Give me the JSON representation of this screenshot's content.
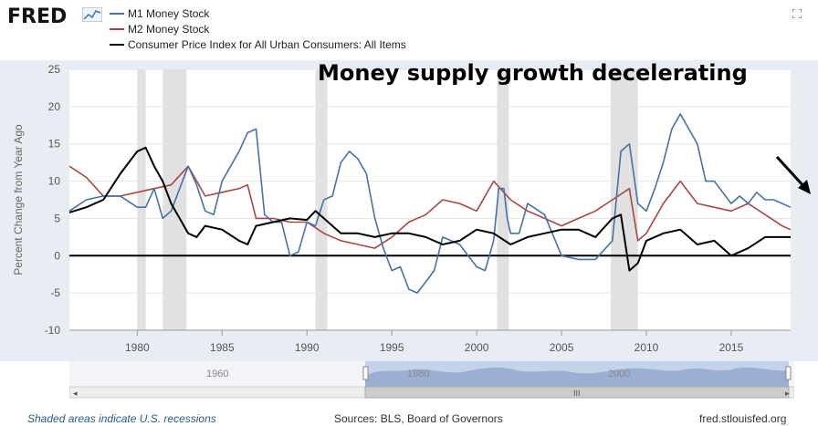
{
  "header": {
    "logo_text": "FRED",
    "legend": [
      {
        "label": "M1 Money Stock",
        "color": "#4572a7"
      },
      {
        "label": "M2 Money Stock",
        "color": "#aa4643"
      },
      {
        "label": "Consumer Price Index for All Urban Consumers: All Items",
        "color": "#000000"
      }
    ]
  },
  "annotation": {
    "text": "Money supply growth decelerating"
  },
  "chart_data": {
    "type": "line",
    "ylabel": "Percent Change from Year Ago",
    "ylim": [
      -10,
      25
    ],
    "xlim": [
      1976.0,
      2018.5
    ],
    "yticks": [
      "25",
      "20",
      "15",
      "10",
      "5",
      "0",
      "-5",
      "-10"
    ],
    "xticks": [
      "1980",
      "1985",
      "1990",
      "1995",
      "2000",
      "2005",
      "2010",
      "2015"
    ],
    "recessions": [
      [
        1980.0,
        1980.5
      ],
      [
        1981.5,
        1982.9
      ],
      [
        1990.5,
        1991.2
      ],
      [
        2001.2,
        2001.9
      ],
      [
        2007.9,
        2009.5
      ]
    ],
    "series": [
      {
        "name": "M1 Money Stock",
        "color": "#4572a7",
        "x": [
          1976.0,
          1977.0,
          1978.0,
          1979.0,
          1980.0,
          1980.5,
          1981.0,
          1981.5,
          1982.0,
          1982.5,
          1983.0,
          1983.5,
          1984.0,
          1984.5,
          1985.0,
          1985.5,
          1986.0,
          1986.5,
          1987.0,
          1987.5,
          1988.0,
          1988.5,
          1989.0,
          1989.5,
          1990.0,
          1990.5,
          1991.0,
          1991.5,
          1992.0,
          1992.5,
          1993.0,
          1993.5,
          1994.0,
          1994.5,
          1995.0,
          1995.5,
          1996.0,
          1996.5,
          1997.0,
          1997.5,
          1998.0,
          1999.0,
          2000.0,
          2000.5,
          2001.0,
          2001.3,
          2001.6,
          2001.8,
          2002.0,
          2002.5,
          2003.0,
          2004.0,
          2005.0,
          2006.0,
          2007.0,
          2008.0,
          2008.5,
          2009.0,
          2009.5,
          2010.0,
          2010.5,
          2011.0,
          2011.5,
          2012.0,
          2012.5,
          2013.0,
          2013.5,
          2014.0,
          2014.5,
          2015.0,
          2015.5,
          2016.0,
          2016.5,
          2017.0,
          2017.5,
          2018.0,
          2018.5
        ],
        "values": [
          6.0,
          7.5,
          8.0,
          8.0,
          6.5,
          6.5,
          9.0,
          5.0,
          6.0,
          9.0,
          12.0,
          9.5,
          6.0,
          5.5,
          10.0,
          12.0,
          14.0,
          16.5,
          17.0,
          5.5,
          4.5,
          4.5,
          0.0,
          0.5,
          4.5,
          4.0,
          7.5,
          8.0,
          12.5,
          14.0,
          13.0,
          11.0,
          5.0,
          1.0,
          -2.0,
          -1.5,
          -4.5,
          -5.0,
          -3.5,
          -2.0,
          2.5,
          1.5,
          -1.5,
          -2.0,
          2.0,
          9.0,
          9.0,
          5.0,
          3.0,
          3.0,
          7.0,
          5.5,
          0.0,
          -0.5,
          -0.5,
          2.0,
          14.0,
          15.0,
          7.0,
          6.0,
          9.0,
          12.5,
          17.0,
          19.0,
          17.0,
          15.0,
          10.0,
          10.0,
          8.5,
          7.0,
          8.0,
          7.0,
          8.5,
          7.5,
          7.5,
          7.0,
          6.5
        ]
      },
      {
        "name": "M2 Money Stock",
        "color": "#aa4643",
        "x": [
          1976.0,
          1977.0,
          1978.0,
          1979.0,
          1980.0,
          1981.0,
          1982.0,
          1983.0,
          1984.0,
          1985.0,
          1986.0,
          1986.5,
          1987.0,
          1988.0,
          1989.0,
          1990.0,
          1991.0,
          1992.0,
          1993.0,
          1994.0,
          1995.0,
          1996.0,
          1997.0,
          1998.0,
          1999.0,
          2000.0,
          2001.0,
          2002.0,
          2003.0,
          2004.0,
          2005.0,
          2006.0,
          2007.0,
          2008.0,
          2009.0,
          2009.5,
          2010.0,
          2011.0,
          2012.0,
          2013.0,
          2014.0,
          2015.0,
          2016.0,
          2017.0,
          2018.0,
          2018.5
        ],
        "values": [
          12.0,
          10.5,
          8.0,
          8.0,
          8.5,
          9.0,
          9.5,
          12.0,
          8.0,
          8.5,
          9.0,
          9.5,
          5.0,
          5.0,
          4.5,
          4.5,
          3.0,
          2.0,
          1.5,
          1.0,
          2.5,
          4.5,
          5.5,
          7.5,
          7.0,
          6.0,
          10.0,
          7.5,
          6.0,
          5.0,
          4.0,
          5.0,
          6.0,
          7.5,
          9.0,
          2.0,
          3.0,
          7.0,
          10.0,
          7.0,
          6.5,
          6.0,
          7.0,
          5.5,
          4.0,
          3.5
        ]
      },
      {
        "name": "Consumer Price Index for All Urban Consumers: All Items",
        "color": "#000000",
        "x": [
          1976.0,
          1977.0,
          1978.0,
          1979.0,
          1980.0,
          1980.5,
          1981.0,
          1981.5,
          1982.0,
          1982.5,
          1983.0,
          1983.5,
          1984.0,
          1985.0,
          1986.0,
          1986.5,
          1987.0,
          1988.0,
          1989.0,
          1990.0,
          1990.5,
          1991.0,
          1992.0,
          1993.0,
          1994.0,
          1995.0,
          1996.0,
          1997.0,
          1998.0,
          1999.0,
          2000.0,
          2001.0,
          2002.0,
          2003.0,
          2004.0,
          2005.0,
          2006.0,
          2007.0,
          2008.0,
          2008.5,
          2009.0,
          2009.5,
          2010.0,
          2011.0,
          2012.0,
          2013.0,
          2014.0,
          2015.0,
          2016.0,
          2017.0,
          2018.0,
          2018.5
        ],
        "values": [
          5.8,
          6.5,
          7.5,
          11.0,
          14.0,
          14.5,
          12.0,
          10.0,
          7.0,
          5.0,
          3.0,
          2.5,
          4.0,
          3.5,
          2.0,
          1.5,
          4.0,
          4.5,
          5.0,
          4.8,
          6.0,
          5.0,
          3.0,
          3.0,
          2.5,
          3.0,
          3.0,
          2.5,
          1.5,
          2.0,
          3.5,
          3.0,
          1.5,
          2.5,
          3.0,
          3.5,
          3.5,
          2.5,
          5.0,
          5.5,
          -2.0,
          -1.0,
          2.0,
          3.0,
          3.5,
          1.5,
          2.0,
          0.0,
          1.0,
          2.5,
          2.5,
          2.5
        ]
      }
    ]
  },
  "navigator": {
    "labels": [
      "1960",
      "1980",
      "2000"
    ]
  },
  "footer": {
    "recession_note": "Shaded areas indicate U.S. recessions",
    "sources": "Sources: BLS, Board of Governors",
    "site": "fred.stlouisfed.org"
  }
}
